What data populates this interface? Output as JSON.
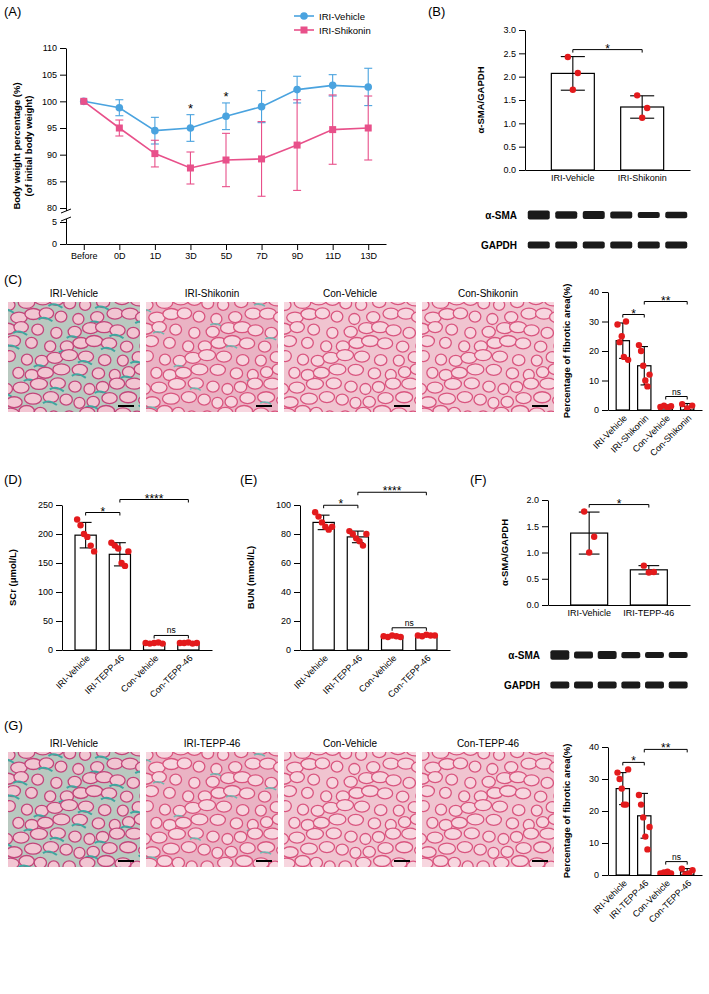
{
  "chart_data": [
    {
      "type": "line",
      "title": "(A)",
      "categories": [
        "Before",
        "0D",
        "1D",
        "3D",
        "5D",
        "7D",
        "9D",
        "11D",
        "13D"
      ],
      "series": [
        {
          "name": "IRI-Vehicle",
          "color": "#4aa3df",
          "marker": "circle",
          "values": [
            100,
            98.8,
            94.5,
            95,
            97.2,
            99,
            102.2,
            103,
            102.7
          ],
          "errors": [
            0,
            1.5,
            2.5,
            2.5,
            2.5,
            3,
            2.5,
            2,
            3.5
          ]
        },
        {
          "name": "IRI-Shikonin",
          "color": "#e8508a",
          "marker": "square",
          "values": [
            100,
            95,
            90.2,
            87.5,
            89,
            89.2,
            91.8,
            94.7,
            95
          ],
          "errors": [
            0,
            1.5,
            2.5,
            3,
            5,
            7,
            8.5,
            6.5,
            6
          ]
        }
      ],
      "ylim": [
        0,
        110
      ],
      "yticks": [
        0,
        5,
        80,
        85,
        90,
        95,
        100,
        105,
        110
      ],
      "y_label": "Body weight percentage (%)",
      "y_label_note": "(of initial body weight)",
      "legend": "top-right",
      "annotations": [
        {
          "text": "*",
          "category": "3D"
        },
        {
          "text": "*",
          "category": "5D"
        }
      ]
    },
    {
      "type": "bar",
      "title": "(B)",
      "categories": [
        "IRI-Vehicle",
        "IRI-Shikonin"
      ],
      "values": [
        2.07,
        1.35
      ],
      "errors": [
        0.36,
        0.24
      ],
      "points": [
        [
          2.42,
          1.72,
          2.08
        ],
        [
          1.6,
          1.12,
          1.33
        ]
      ],
      "color": "#e31a1c",
      "ylim": [
        0,
        3
      ],
      "yticks": [
        {
          "value": 0,
          "label": "0.0"
        },
        0.5,
        {
          "value": 1,
          "label": "1.0"
        },
        1.5,
        {
          "value": 2,
          "label": "2.0"
        },
        2.5,
        {
          "value": 3,
          "label": "3.0"
        }
      ],
      "y_label": "α-SMA/GAPDH",
      "blot_labels": [
        "α-SMA",
        "GAPDH"
      ],
      "annotations": [
        {
          "text": "*",
          "between": [
            "IRI-Vehicle",
            "IRI-Shikonin"
          ]
        }
      ]
    },
    {
      "type": "bar",
      "title": "(C)",
      "image_labels": [
        "IRI-Vehicle",
        "IRI-Shikonin",
        "Con-Vehicle",
        "Con-Shikonin"
      ],
      "categories": [
        "IRI-Vehicle",
        "IRI-Shikonin",
        "Con-Vehicle",
        "Con-Shikonin"
      ],
      "values": [
        23.5,
        15,
        1.2,
        1.2
      ],
      "errors": [
        6,
        6.5,
        0.5,
        1
      ],
      "points": [
        [
          29,
          23,
          25,
          18,
          30,
          17
        ],
        [
          22,
          20,
          15,
          10,
          8,
          12
        ],
        [
          1,
          1.5,
          0.8,
          1.3
        ],
        [
          2,
          0.5,
          1.5
        ]
      ],
      "color": "#e31a1c",
      "ylim": [
        0,
        40
      ],
      "yticks": [
        0,
        10,
        20,
        30,
        40
      ],
      "y_label": "Percentage of fibrotic area(%)",
      "annotations": [
        {
          "text": "*",
          "between": [
            "IRI-Vehicle",
            "IRI-Shikonin"
          ]
        },
        {
          "text": "**",
          "between": [
            "IRI-Shikonin",
            "Con-Shikonin"
          ]
        },
        {
          "text": "ns",
          "between": [
            "Con-Vehicle",
            "Con-Shikonin"
          ]
        }
      ]
    },
    {
      "type": "bar",
      "title": "(D)",
      "categories": [
        "IRI-Vehicle",
        "IRI-TEPP-46",
        "Con-Vehicle",
        "Con-TEPP-46"
      ],
      "values": [
        198,
        165,
        12,
        12
      ],
      "errors": [
        22,
        20,
        1,
        1
      ],
      "points": [
        [
          225,
          215,
          200,
          195,
          180,
          170
        ],
        [
          185,
          180,
          175,
          150,
          145,
          170
        ],
        [
          12,
          11,
          12,
          13,
          11
        ],
        [
          12,
          12,
          13,
          11,
          12
        ]
      ],
      "color": "#e31a1c",
      "ylim": [
        0,
        250
      ],
      "yticks": [
        0,
        50,
        100,
        150,
        200,
        250
      ],
      "y_label": "SCr (μmol/L)",
      "annotations": [
        {
          "text": "*",
          "between": [
            "IRI-Vehicle",
            "IRI-TEPP-46"
          ]
        },
        {
          "text": "****",
          "between": [
            "IRI-TEPP-46",
            "Con-TEPP-46"
          ]
        },
        {
          "text": "ns",
          "between": [
            "Con-Vehicle",
            "Con-TEPP-46"
          ]
        }
      ]
    },
    {
      "type": "bar",
      "title": "(E)",
      "categories": [
        "IRI-Vehicle",
        "IRI-TEPP-46",
        "Con-Vehicle",
        "Con-TEPP-46"
      ],
      "values": [
        88,
        78,
        9.5,
        10
      ],
      "errors": [
        5,
        4,
        0.5,
        0.5
      ],
      "points": [
        [
          95,
          92,
          88,
          85,
          83,
          85
        ],
        [
          82,
          80,
          77,
          75,
          72,
          80
        ],
        [
          9.5,
          9,
          10,
          9.5,
          9
        ],
        [
          10,
          9.5,
          10.5,
          10,
          10
        ]
      ],
      "color": "#e31a1c",
      "ylim": [
        0,
        100
      ],
      "yticks": [
        0,
        20,
        40,
        60,
        80,
        100
      ],
      "y_label": "BUN (mmol/L)",
      "annotations": [
        {
          "text": "*",
          "between": [
            "IRI-Vehicle",
            "IRI-TEPP-46"
          ]
        },
        {
          "text": "****",
          "between": [
            "IRI-TEPP-46",
            "Con-TEPP-46"
          ]
        },
        {
          "text": "ns",
          "between": [
            "Con-Vehicle",
            "Con-TEPP-46"
          ]
        }
      ]
    },
    {
      "type": "bar",
      "title": "(F)",
      "categories": [
        "IRI-Vehicle",
        "IRI-TEPP-46"
      ],
      "values": [
        1.37,
        0.67
      ],
      "errors": [
        0.4,
        0.08
      ],
      "points": [
        [
          1.78,
          1.0,
          1.3
        ],
        [
          0.75,
          0.62,
          0.63
        ]
      ],
      "color": "#e31a1c",
      "ylim": [
        0,
        2
      ],
      "yticks": [
        {
          "value": 0,
          "label": "0.0"
        },
        0.5,
        {
          "value": 1,
          "label": "1.0"
        },
        1.5,
        {
          "value": 2,
          "label": "2.0"
        }
      ],
      "y_label": "α-SMA/GAPDH",
      "blot_labels": [
        "α-SMA",
        "GAPDH"
      ],
      "annotations": [
        {
          "text": "*",
          "between": [
            "IRI-Vehicle",
            "IRI-TEPP-46"
          ]
        }
      ]
    },
    {
      "type": "bar",
      "title": "(G)",
      "image_labels": [
        "IRI-Vehicle",
        "IRI-TEPP-46",
        "Con-Vehicle",
        "Con-TEPP-46"
      ],
      "categories": [
        "IRI-Vehicle",
        "IRI-TEPP-46",
        "Con-Vehicle",
        "Con-TEPP-46"
      ],
      "values": [
        27,
        18.5,
        0.7,
        1
      ],
      "errors": [
        5,
        7,
        0.3,
        1
      ],
      "points": [
        [
          32,
          30,
          27,
          22,
          22,
          33
        ],
        [
          25,
          22,
          18,
          12,
          8,
          15
        ],
        [
          0.5,
          0.8,
          1,
          0.5
        ],
        [
          2,
          0.2,
          0.5,
          1.5
        ]
      ],
      "color": "#e31a1c",
      "ylim": [
        0,
        40
      ],
      "yticks": [
        0,
        10,
        20,
        30,
        40
      ],
      "y_label": "Percentage of fibrotic area(%)",
      "annotations": [
        {
          "text": "*",
          "between": [
            "IRI-Vehicle",
            "IRI-TEPP-46"
          ]
        },
        {
          "text": "**",
          "between": [
            "IRI-TEPP-46",
            "Con-TEPP-46"
          ]
        },
        {
          "text": "ns",
          "between": [
            "Con-Vehicle",
            "Con-TEPP-46"
          ]
        }
      ]
    }
  ]
}
